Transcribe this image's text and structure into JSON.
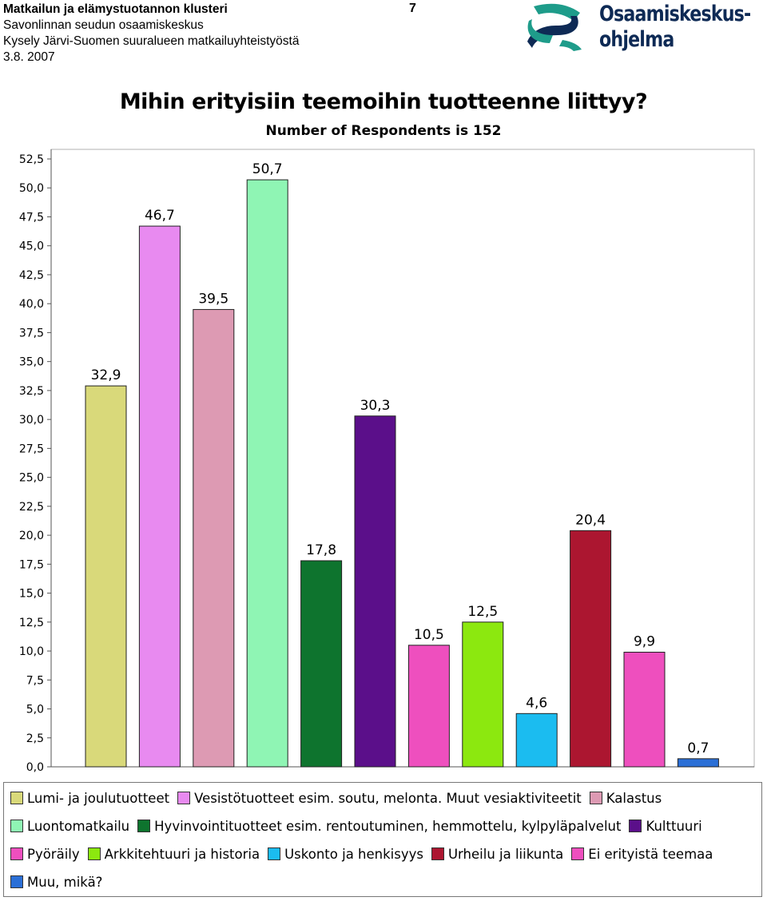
{
  "header": {
    "line1": "Matkailun ja elämystuotannon klusteri",
    "line2": "Savonlinnan seudun osaamiskeskus",
    "line3": "Kysely Järvi-Suomen suuralueen matkailuyhteistyöstä",
    "line4": "3.8. 2007",
    "page_number": "7"
  },
  "logo": {
    "line1": "Osaamiskeskus-",
    "line2": "ohjelma"
  },
  "chart_data": {
    "type": "bar",
    "title": "Mihin erityisiin teemoihin tuotteenne liittyy?",
    "subtitle": "Number of Respondents is 152",
    "ylim": [
      0,
      52.5
    ],
    "yticks": [
      "0,0",
      "2,5",
      "5,0",
      "7,5",
      "10,0",
      "12,5",
      "15,0",
      "17,5",
      "20,0",
      "22,5",
      "25,0",
      "27,5",
      "30,0",
      "32,5",
      "35,0",
      "37,5",
      "40,0",
      "42,5",
      "45,0",
      "47,5",
      "50,0",
      "52,5"
    ],
    "grid": false,
    "legend_position": "bottom",
    "bars": [
      {
        "name": "Lumi- ja joulutuotteet",
        "value": 32.9,
        "label": "32,9",
        "color": "#d9d97a"
      },
      {
        "name": "Vesistötuotteet esim. soutu, melonta. Muut vesiaktiviteetit",
        "value": 46.7,
        "label": "46,7",
        "color": "#e88af0"
      },
      {
        "name": "Kalastus",
        "value": 39.5,
        "label": "39,5",
        "color": "#dd9ab3"
      },
      {
        "name": "Luontomatkailu",
        "value": 50.7,
        "label": "50,7",
        "color": "#8ff5b4"
      },
      {
        "name": "Hyvinvointituotteet esim. rentoutuminen, hemmottelu, kylpyläpalvelut",
        "value": 17.8,
        "label": "17,8",
        "color": "#0e742e"
      },
      {
        "name": "Kulttuuri",
        "value": 30.3,
        "label": "30,3",
        "color": "#5b0f8a"
      },
      {
        "name": "Pyöräily",
        "value": 10.5,
        "label": "10,5",
        "color": "#ee4fbe"
      },
      {
        "name": "Arkkitehtuuri ja historia",
        "value": 12.5,
        "label": "12,5",
        "color": "#8ce80f"
      },
      {
        "name": "Uskonto ja henkisyys",
        "value": 4.6,
        "label": "4,6",
        "color": "#1bbcf0"
      },
      {
        "name": "Urheilu ja liikunta",
        "value": 20.4,
        "label": "20,4",
        "color": "#ac1630"
      },
      {
        "name": "Ei erityistä teemaa",
        "value": 9.9,
        "label": "9,9",
        "color": "#ee4fbe"
      },
      {
        "name": "Muu, mikä?",
        "value": 0.7,
        "label": "0,7",
        "color": "#2b6fd6"
      }
    ]
  }
}
